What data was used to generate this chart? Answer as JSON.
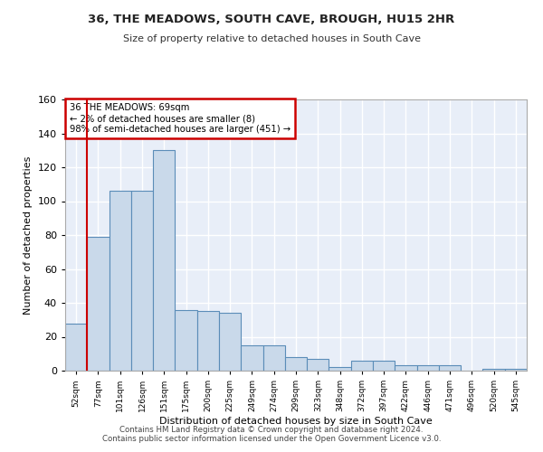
{
  "title1": "36, THE MEADOWS, SOUTH CAVE, BROUGH, HU15 2HR",
  "title2": "Size of property relative to detached houses in South Cave",
  "xlabel": "Distribution of detached houses by size in South Cave",
  "ylabel": "Number of detached properties",
  "categories": [
    "52sqm",
    "77sqm",
    "101sqm",
    "126sqm",
    "151sqm",
    "175sqm",
    "200sqm",
    "225sqm",
    "249sqm",
    "274sqm",
    "299sqm",
    "323sqm",
    "348sqm",
    "372sqm",
    "397sqm",
    "422sqm",
    "446sqm",
    "471sqm",
    "496sqm",
    "520sqm",
    "545sqm"
  ],
  "values": [
    28,
    79,
    106,
    106,
    130,
    36,
    35,
    34,
    15,
    15,
    8,
    7,
    2,
    6,
    6,
    3,
    3,
    3,
    0,
    1,
    1
  ],
  "bar_color": "#c9d9ea",
  "bar_edge_color": "#5b8db8",
  "vline_color": "#cc0000",
  "vline_x_index": 0,
  "annotation_text": "36 THE MEADOWS: 69sqm\n← 2% of detached houses are smaller (8)\n98% of semi-detached houses are larger (451) →",
  "annotation_box_color": "#ffffff",
  "annotation_box_edge": "#cc0000",
  "ylim": [
    0,
    160
  ],
  "yticks": [
    0,
    20,
    40,
    60,
    80,
    100,
    120,
    140,
    160
  ],
  "background_color": "#e8eef8",
  "fig_background_color": "#ffffff",
  "grid_color": "#ffffff",
  "footer": "Contains HM Land Registry data © Crown copyright and database right 2024.\nContains public sector information licensed under the Open Government Licence v3.0."
}
